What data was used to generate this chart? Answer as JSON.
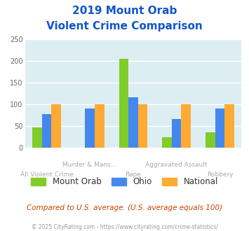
{
  "title_line1": "2019 Mount Orab",
  "title_line2": "Violent Crime Comparison",
  "categories": [
    "All Violent Crime",
    "Murder & Mans...",
    "Rape",
    "Aggravated Assault",
    "Robbery"
  ],
  "series": {
    "Mount Orab": [
      47,
      0,
      205,
      25,
      36
    ],
    "Ohio": [
      78,
      91,
      116,
      67,
      91
    ],
    "National": [
      100,
      100,
      100,
      100,
      100
    ]
  },
  "colors": {
    "Mount Orab": "#80cc28",
    "Ohio": "#4488ee",
    "National": "#ffaa33"
  },
  "ylim": [
    0,
    250
  ],
  "yticks": [
    0,
    50,
    100,
    150,
    200,
    250
  ],
  "bg_color": "#ddeef3",
  "grid_color": "#ffffff",
  "legend_labels": [
    "Mount Orab",
    "Ohio",
    "National"
  ],
  "footnote1": "Compared to U.S. average. (U.S. average equals 100)",
  "footnote2": "© 2025 CityRating.com - https://www.cityrating.com/crime-statistics/",
  "title_color": "#1155cc",
  "footnote1_color": "#cc4400",
  "footnote2_color": "#999999",
  "xlabel_color": "#aaaaaa"
}
